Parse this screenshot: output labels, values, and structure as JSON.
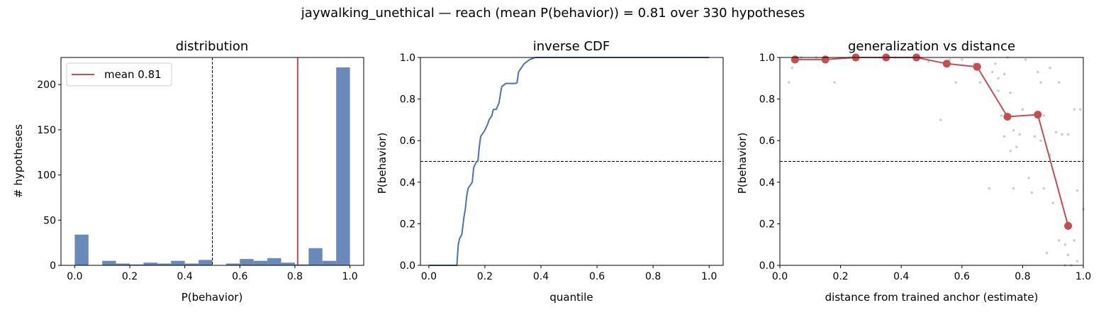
{
  "figure_title": "jaywalking_unethical  —  reach (mean P(behavior)) = 0.81  over 330 hypotheses",
  "colors": {
    "bar": "#6a89bb",
    "line": "#4c72b0",
    "accent": "#c44e52",
    "scatter": "#b9c6e0"
  },
  "chart_data": [
    {
      "type": "bar",
      "title": "distribution",
      "xlabel": "P(behavior)",
      "ylabel": "# hypotheses",
      "xlim": [
        -0.05,
        1.05
      ],
      "ylim": [
        0,
        230
      ],
      "xticks": [
        "0.0",
        "0.2",
        "0.4",
        "0.6",
        "0.8",
        "1.0"
      ],
      "yticks": [
        "0",
        "50",
        "100",
        "150",
        "200"
      ],
      "bin_width": 0.05,
      "bin_starts": [
        0.0,
        0.05,
        0.1,
        0.15,
        0.2,
        0.25,
        0.3,
        0.35,
        0.4,
        0.45,
        0.5,
        0.55,
        0.6,
        0.65,
        0.7,
        0.75,
        0.8,
        0.85,
        0.9,
        0.95
      ],
      "counts": [
        34,
        0,
        5,
        2,
        1,
        3,
        2,
        5,
        2,
        6,
        0,
        2,
        7,
        5,
        8,
        3,
        1,
        19,
        5,
        219
      ],
      "threshold": 0.5,
      "mean": 0.81,
      "legend": [
        "mean 0.81"
      ],
      "legend_position": "top-left"
    },
    {
      "type": "line",
      "title": "inverse CDF",
      "xlabel": "quantile",
      "ylabel": "P(behavior)",
      "xlim": [
        -0.03,
        1.05
      ],
      "ylim": [
        0,
        1
      ],
      "xticks": [
        "0.0",
        "0.2",
        "0.4",
        "0.6",
        "0.8",
        "1.0"
      ],
      "yticks": [
        "0.0",
        "0.2",
        "0.4",
        "0.6",
        "0.8",
        "1.0"
      ],
      "threshold": 0.5,
      "x": [
        0.0,
        0.1,
        0.105,
        0.11,
        0.118,
        0.125,
        0.13,
        0.135,
        0.14,
        0.145,
        0.155,
        0.16,
        0.17,
        0.175,
        0.18,
        0.185,
        0.19,
        0.2,
        0.21,
        0.215,
        0.225,
        0.23,
        0.24,
        0.25,
        0.26,
        0.27,
        0.275,
        0.31,
        0.315,
        0.32,
        0.33,
        0.34,
        0.35,
        0.36,
        0.37,
        0.38,
        0.4,
        0.45,
        1.0
      ],
      "y": [
        0.0,
        0.0,
        0.1,
        0.13,
        0.15,
        0.23,
        0.27,
        0.33,
        0.37,
        0.38,
        0.4,
        0.47,
        0.5,
        0.5,
        0.57,
        0.62,
        0.63,
        0.65,
        0.68,
        0.7,
        0.72,
        0.75,
        0.75,
        0.78,
        0.86,
        0.87,
        0.875,
        0.875,
        0.88,
        0.93,
        0.95,
        0.97,
        0.98,
        0.99,
        0.995,
        1.0,
        1.0,
        1.0,
        1.0
      ]
    },
    {
      "type": "scatter",
      "title": "generalization vs distance",
      "xlabel": "distance from trained anchor (estimate)",
      "ylabel": "P(behavior)",
      "xlim": [
        0,
        1
      ],
      "ylim": [
        0,
        1
      ],
      "xticks": [
        "0.0",
        "0.2",
        "0.4",
        "0.6",
        "0.8",
        "1.0"
      ],
      "yticks": [
        "0.0",
        "0.2",
        "0.4",
        "0.6",
        "0.8",
        "1.0"
      ],
      "threshold": 0.5,
      "bin_means": {
        "x": [
          0.05,
          0.15,
          0.25,
          0.35,
          0.45,
          0.55,
          0.65,
          0.75,
          0.85,
          0.95
        ],
        "y": [
          0.99,
          0.99,
          1.0,
          1.0,
          1.0,
          0.97,
          0.955,
          0.715,
          0.725,
          0.19
        ]
      },
      "points": {
        "x": [
          0.03,
          0.04,
          0.07,
          0.12,
          0.18,
          0.23,
          0.33,
          0.38,
          0.42,
          0.49,
          0.53,
          0.56,
          0.58,
          0.6,
          0.64,
          0.66,
          0.69,
          0.7,
          0.71,
          0.72,
          0.72,
          0.73,
          0.74,
          0.74,
          0.75,
          0.76,
          0.76,
          0.77,
          0.77,
          0.78,
          0.79,
          0.8,
          0.81,
          0.82,
          0.83,
          0.84,
          0.85,
          0.86,
          0.86,
          0.87,
          0.87,
          0.88,
          0.89,
          0.89,
          0.9,
          0.91,
          0.92,
          0.92,
          0.93,
          0.93,
          0.94,
          0.94,
          0.95,
          0.95,
          0.96,
          0.96,
          0.97,
          0.97,
          0.98,
          0.98,
          0.99,
          1.0
        ],
        "y": [
          0.88,
          0.95,
          1.0,
          1.0,
          0.88,
          1.0,
          1.0,
          1.0,
          1.0,
          0.98,
          0.7,
          0.99,
          0.88,
          0.99,
          0.97,
          0.88,
          0.37,
          0.93,
          0.97,
          0.84,
          0.9,
          0.72,
          0.62,
          0.92,
          1.0,
          0.55,
          0.83,
          0.37,
          0.65,
          0.57,
          0.63,
          0.75,
          0.99,
          0.42,
          0.35,
          0.62,
          0.93,
          0.6,
          0.88,
          0.37,
          0.72,
          0.06,
          0.53,
          0.95,
          0.3,
          0.64,
          0.12,
          0.88,
          0.3,
          0.63,
          0.0,
          0.1,
          0.63,
          0.05,
          0.0,
          0.19,
          0.12,
          0.75,
          0.02,
          0.36,
          0.75,
          0.27
        ]
      }
    }
  ]
}
